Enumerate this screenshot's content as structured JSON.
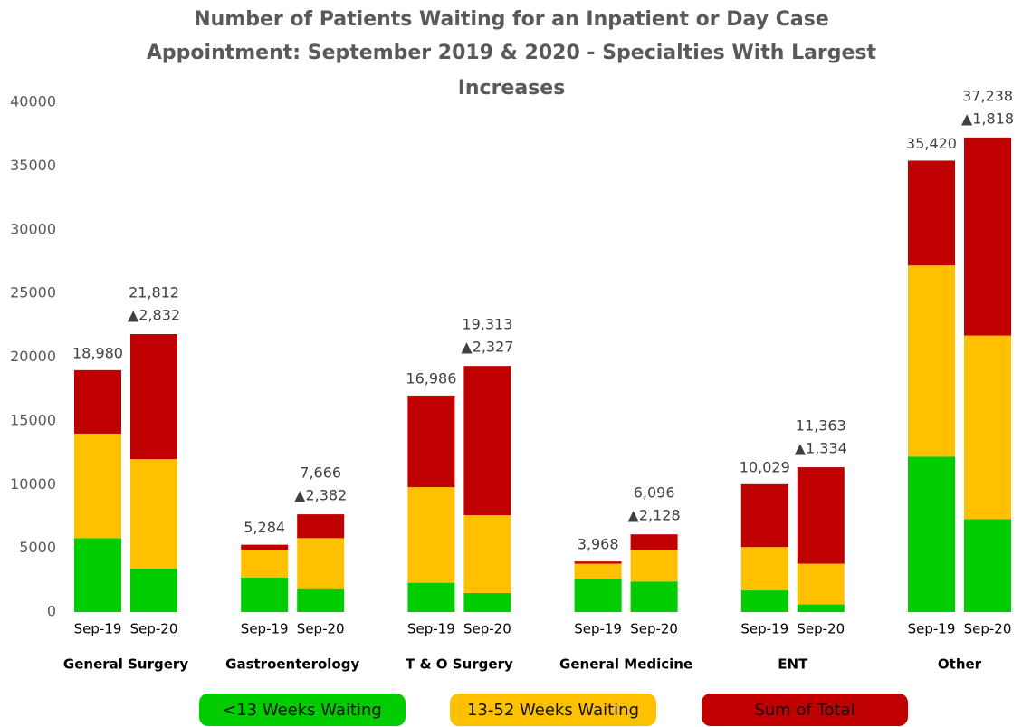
{
  "chart_data": {
    "type": "stacked-bar",
    "title": [
      "Number of Patients Waiting for an Inpatient or Day Case",
      "Appointment: September 2019 & 2020 - Specialties With Largest",
      "Increases"
    ],
    "groups": [
      "General Surgery",
      "Gastroenterology",
      "T & O Surgery",
      "General Medicine",
      "ENT",
      "Other"
    ],
    "x": [
      "Sep-19",
      "Sep-20",
      "Sep-19",
      "Sep-20",
      "Sep-19",
      "Sep-20",
      "Sep-19",
      "Sep-20",
      "Sep-19",
      "Sep-20",
      "Sep-19",
      "Sep-20"
    ],
    "series": [
      {
        "name": "<13 Weeks Waiting",
        "color": "#00cc00",
        "values": [
          5800,
          3400,
          2700,
          1800,
          2300,
          1500,
          2600,
          2400,
          1700,
          600,
          12200,
          7300
        ]
      },
      {
        "name": "13-52 Weeks Waiting",
        "color": "#ffc000",
        "values": [
          8200,
          8600,
          2200,
          4000,
          7500,
          6100,
          1200,
          2500,
          3400,
          3200,
          15000,
          14400
        ]
      },
      {
        "name": "Sum of Total",
        "color": "#c00000",
        "values": [
          4980,
          9812,
          384,
          1866,
          7186,
          11713,
          168,
          1196,
          4929,
          7563,
          8220,
          15538
        ]
      }
    ],
    "totals": [
      18980,
      21812,
      5284,
      7666,
      16986,
      19313,
      3968,
      6096,
      10029,
      11363,
      35420,
      37238
    ],
    "total_labels": [
      "18,980",
      "21,812",
      "5,284",
      "7,666",
      "16,986",
      "19,313",
      "3,968",
      "6,096",
      "10,029",
      "11,363",
      "35,420",
      "37,238"
    ],
    "increase_labels": [
      "▲2,832",
      "▲2,382",
      "▲2,327",
      "▲2,128",
      "▲1,334",
      "▲1,818"
    ],
    "ylim": [
      0,
      40000
    ],
    "yticks": [
      0,
      5000,
      10000,
      15000,
      20000,
      25000,
      30000,
      35000,
      40000
    ],
    "grid": false,
    "legend": "bottom"
  }
}
